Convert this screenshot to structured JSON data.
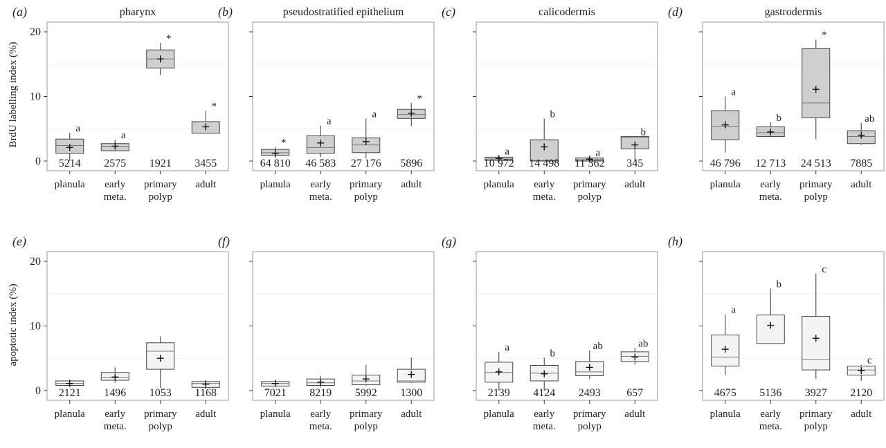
{
  "figure": {
    "row_labels": [
      "BrdU labelling index (%)",
      "apoptotic index (%)"
    ],
    "categories": [
      [
        "planula"
      ],
      [
        "early",
        "meta."
      ],
      [
        "primary",
        "polyp"
      ],
      [
        "adult"
      ]
    ],
    "y_ticks": [
      "0",
      "10",
      "20"
    ]
  },
  "chart_data": [
    {
      "type": "box",
      "panel": "(a)",
      "title": "pharynx",
      "ylabel": "BrdU labelling index (%)",
      "ylim": [
        -1.5,
        21.5
      ],
      "categories": [
        "planula",
        "early meta.",
        "primary polyp",
        "adult"
      ],
      "boxes": [
        {
          "min": 0.0,
          "q1": 1.2,
          "median": 2.4,
          "q3": 3.4,
          "max": 4.4,
          "mean": 2.1,
          "n": "5214",
          "label": "a"
        },
        {
          "min": 1.5,
          "q1": 1.6,
          "median": 2.3,
          "q3": 2.7,
          "max": 3.3,
          "mean": 2.3,
          "n": "2575",
          "label": "a"
        },
        {
          "min": 13.3,
          "q1": 14.4,
          "median": 15.8,
          "q3": 17.2,
          "max": 18.3,
          "mean": 15.8,
          "n": "1921",
          "label": "*"
        },
        {
          "min": 4.3,
          "q1": 4.3,
          "median": 4.3,
          "q3": 6.1,
          "max": 7.8,
          "mean": 5.3,
          "n": "3455",
          "label": "*"
        }
      ]
    },
    {
      "type": "box",
      "panel": "(b)",
      "title": "pseudostratified epithelium",
      "ylim": [
        -1.5,
        21.5
      ],
      "categories": [
        "planula",
        "early meta.",
        "primary polyp",
        "adult"
      ],
      "boxes": [
        {
          "min": 0.5,
          "q1": 0.9,
          "median": 1.3,
          "q3": 1.8,
          "max": 2.2,
          "mean": 1.2,
          "n": "64 810",
          "label": "*"
        },
        {
          "min": 0.6,
          "q1": 1.2,
          "median": 2.1,
          "q3": 3.9,
          "max": 5.5,
          "mean": 2.8,
          "n": "46 583",
          "label": "a"
        },
        {
          "min": 0.4,
          "q1": 1.3,
          "median": 2.5,
          "q3": 3.6,
          "max": 6.6,
          "mean": 3.0,
          "n": "27 176",
          "label": "a"
        },
        {
          "min": 5.4,
          "q1": 6.6,
          "median": 7.2,
          "q3": 8.0,
          "max": 9.0,
          "mean": 7.4,
          "n": "5896",
          "label": "*"
        }
      ]
    },
    {
      "type": "box",
      "panel": "(c)",
      "title": "calicodermis",
      "ylim": [
        -1.5,
        21.5
      ],
      "categories": [
        "planula",
        "early meta.",
        "primary polyp",
        "adult"
      ],
      "boxes": [
        {
          "min": 0.0,
          "q1": 0.1,
          "median": 0.3,
          "q3": 0.6,
          "max": 0.8,
          "mean": 0.4,
          "n": "10 972",
          "label": "a"
        },
        {
          "min": 0.0,
          "q1": 0.0,
          "median": 0.1,
          "q3": 3.3,
          "max": 6.6,
          "mean": 2.2,
          "n": "14 498",
          "label": "b"
        },
        {
          "min": 0.0,
          "q1": 0.0,
          "median": 0.2,
          "q3": 0.5,
          "max": 0.6,
          "mean": 0.3,
          "n": "11 362",
          "label": "a"
        },
        {
          "min": 0.0,
          "q1": 1.9,
          "median": 3.7,
          "q3": 3.8,
          "max": 3.8,
          "mean": 2.5,
          "n": "345",
          "label": "b"
        }
      ]
    },
    {
      "type": "box",
      "panel": "(d)",
      "title": "gastrodermis",
      "ylim": [
        -1.5,
        21.5
      ],
      "categories": [
        "planula",
        "early meta.",
        "primary polyp",
        "adult"
      ],
      "boxes": [
        {
          "min": 1.3,
          "q1": 3.3,
          "median": 5.4,
          "q3": 7.8,
          "max": 10.0,
          "mean": 5.6,
          "n": "46 796",
          "label": "a"
        },
        {
          "min": 3.8,
          "q1": 3.8,
          "median": 4.4,
          "q3": 5.3,
          "max": 6.0,
          "mean": 4.5,
          "n": "12 713",
          "label": "b"
        },
        {
          "min": 3.4,
          "q1": 6.7,
          "median": 9.0,
          "q3": 17.4,
          "max": 18.8,
          "mean": 11.1,
          "n": "24 513",
          "label": "*"
        },
        {
          "min": 2.5,
          "q1": 2.7,
          "median": 3.8,
          "q3": 4.7,
          "max": 5.9,
          "mean": 4.0,
          "n": "7885",
          "label": "ab"
        }
      ]
    },
    {
      "type": "box",
      "panel": "(e)",
      "ylabel": "apoptotic index (%)",
      "ylim": [
        -1.5,
        21.5
      ],
      "categories": [
        "planula",
        "early meta.",
        "primary polyp",
        "adult"
      ],
      "boxes": [
        {
          "min": 0.7,
          "q1": 0.8,
          "median": 1.1,
          "q3": 1.5,
          "max": 1.7,
          "mean": 1.1,
          "n": "2121",
          "label": ""
        },
        {
          "min": 1.2,
          "q1": 1.6,
          "median": 2.0,
          "q3": 2.8,
          "max": 3.6,
          "mean": 2.1,
          "n": "1496",
          "label": ""
        },
        {
          "min": 0.4,
          "q1": 3.3,
          "median": 6.1,
          "q3": 7.4,
          "max": 8.4,
          "mean": 5.0,
          "n": "1053",
          "label": ""
        },
        {
          "min": 0.2,
          "q1": 0.5,
          "median": 1.1,
          "q3": 1.4,
          "max": 1.6,
          "mean": 1.0,
          "n": "1168",
          "label": ""
        }
      ]
    },
    {
      "type": "box",
      "panel": "(f)",
      "ylim": [
        -1.5,
        21.5
      ],
      "categories": [
        "planula",
        "early meta.",
        "primary polyp",
        "adult"
      ],
      "boxes": [
        {
          "min": 0.6,
          "q1": 0.7,
          "median": 1.1,
          "q3": 1.4,
          "max": 1.7,
          "mean": 1.1,
          "n": "7021",
          "label": ""
        },
        {
          "min": 0.5,
          "q1": 0.8,
          "median": 1.2,
          "q3": 1.8,
          "max": 2.3,
          "mean": 1.3,
          "n": "8219",
          "label": ""
        },
        {
          "min": 0.7,
          "q1": 0.9,
          "median": 1.5,
          "q3": 2.4,
          "max": 4.0,
          "mean": 1.8,
          "n": "5992",
          "label": ""
        },
        {
          "min": 1.2,
          "q1": 1.3,
          "median": 1.5,
          "q3": 3.3,
          "max": 5.1,
          "mean": 2.5,
          "n": "1300",
          "label": ""
        }
      ]
    },
    {
      "type": "box",
      "panel": "(g)",
      "ylim": [
        -1.5,
        21.5
      ],
      "categories": [
        "planula",
        "early meta.",
        "primary polyp",
        "adult"
      ],
      "boxes": [
        {
          "min": 0.0,
          "q1": 1.3,
          "median": 2.8,
          "q3": 4.4,
          "max": 6.0,
          "mean": 2.9,
          "n": "2139",
          "label": "a"
        },
        {
          "min": 0.0,
          "q1": 1.5,
          "median": 2.7,
          "q3": 3.9,
          "max": 5.1,
          "mean": 2.6,
          "n": "4124",
          "label": "b"
        },
        {
          "min": 1.8,
          "q1": 2.3,
          "median": 2.9,
          "q3": 4.5,
          "max": 6.2,
          "mean": 3.6,
          "n": "2493",
          "label": "ab"
        },
        {
          "min": 4.0,
          "q1": 4.5,
          "median": 5.3,
          "q3": 6.0,
          "max": 6.6,
          "mean": 5.2,
          "n": "657",
          "label": "ab"
        }
      ]
    },
    {
      "type": "box",
      "panel": "(h)",
      "ylim": [
        -1.5,
        21.5
      ],
      "categories": [
        "planula",
        "early meta.",
        "primary polyp",
        "adult"
      ],
      "boxes": [
        {
          "min": 2.4,
          "q1": 3.8,
          "median": 5.2,
          "q3": 8.6,
          "max": 11.8,
          "mean": 6.4,
          "n": "4675",
          "label": "a"
        },
        {
          "min": 7.3,
          "q1": 7.3,
          "median": 7.3,
          "q3": 11.7,
          "max": 15.8,
          "mean": 10.1,
          "n": "5136",
          "label": "b"
        },
        {
          "min": 1.8,
          "q1": 3.2,
          "median": 4.8,
          "q3": 11.5,
          "max": 18.1,
          "mean": 8.1,
          "n": "3927",
          "label": "c"
        },
        {
          "min": 1.5,
          "q1": 2.4,
          "median": 3.2,
          "q3": 3.8,
          "max": 4.0,
          "mean": 3.1,
          "n": "2120",
          "label": "c"
        }
      ]
    }
  ]
}
